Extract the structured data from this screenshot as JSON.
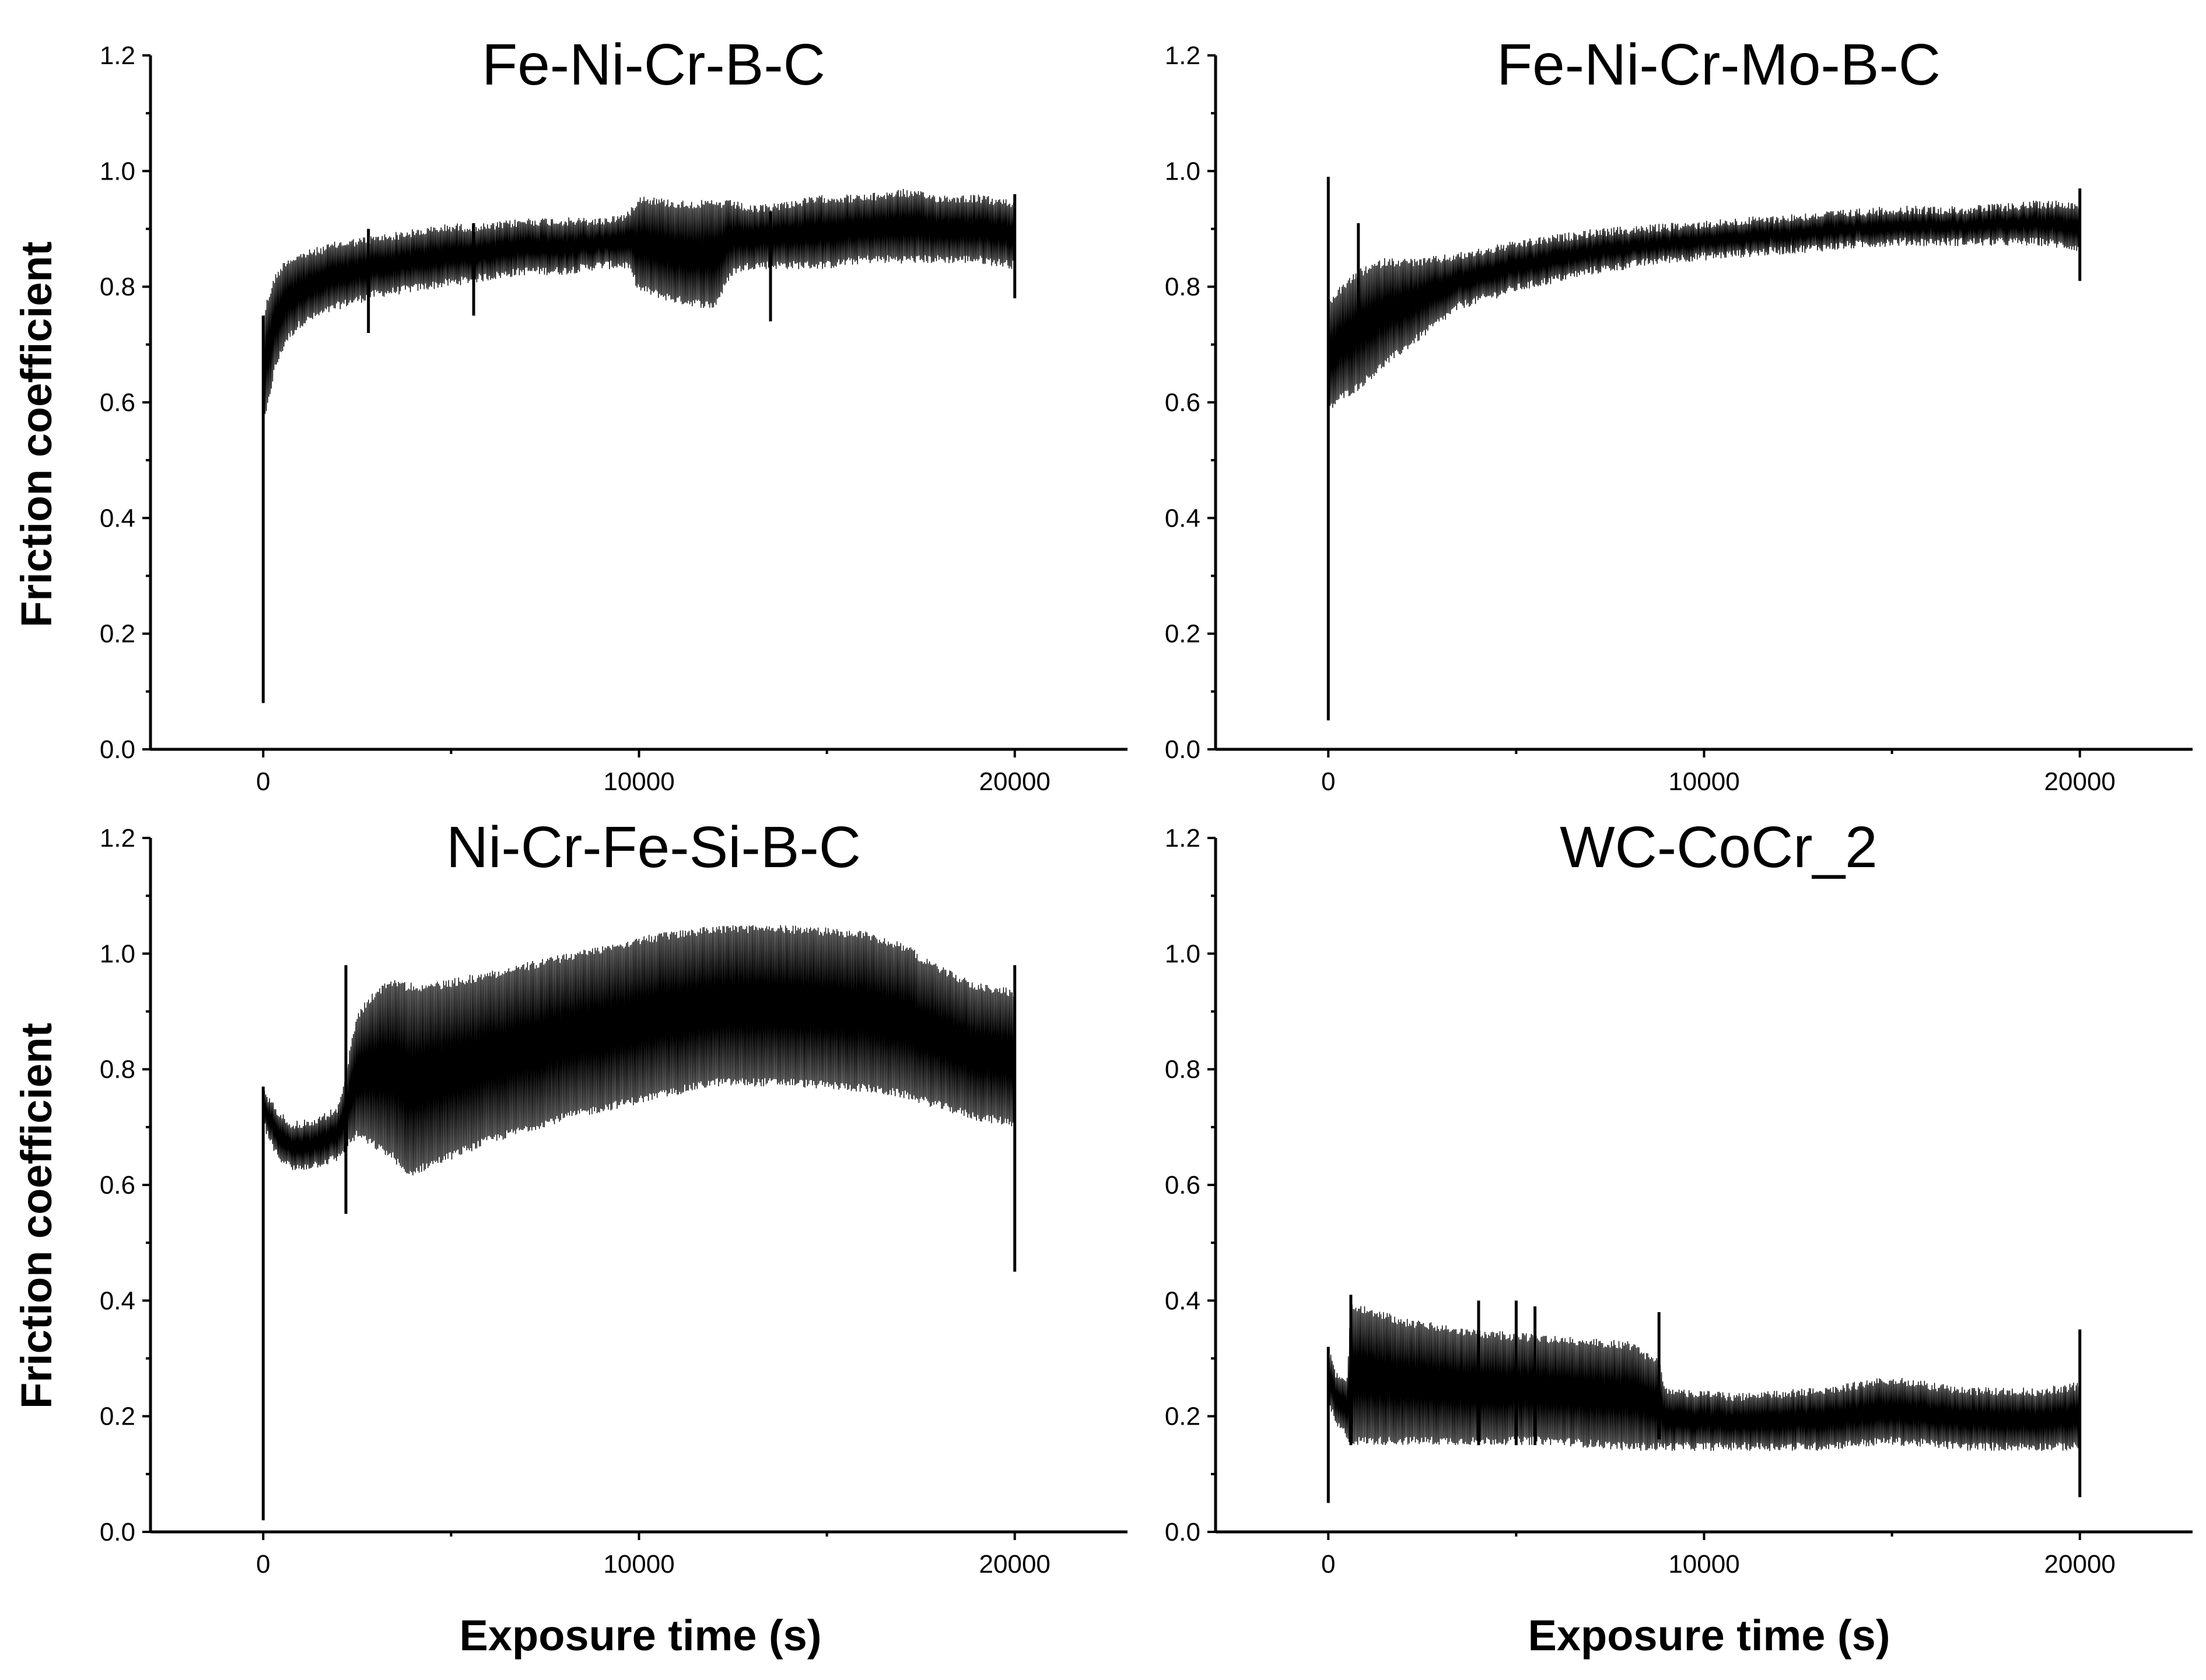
{
  "figure": {
    "ylabel": "Friction coefficient",
    "xlabel": "Exposure time (s)"
  },
  "chart_data": [
    {
      "type": "line",
      "title": "Fe-Ni-Cr-B-C",
      "xlabel": "Exposure time (s)",
      "ylabel": "Friction coefficient",
      "xlim": [
        -3000,
        23000
      ],
      "ylim": [
        0.0,
        1.2
      ],
      "xticks": [
        0,
        10000,
        20000
      ],
      "xtick_labels": [
        "0",
        "10000",
        "20000"
      ],
      "yticks": [
        0.0,
        0.2,
        0.4,
        0.6,
        0.8,
        1.0,
        1.2
      ],
      "ytick_labels": [
        "0.0",
        "0.2",
        "0.4",
        "0.6",
        "0.8",
        "1.0",
        "1.2"
      ],
      "series": [
        {
          "name": "Fe-Ni-Cr-B-C",
          "x": [
            0,
            100,
            300,
            600,
            1000,
            2000,
            3000,
            4000,
            5000,
            6000,
            7000,
            8000,
            9000,
            9700,
            10000,
            11000,
            12000,
            12500,
            13000,
            14000,
            15000,
            16000,
            17000,
            18000,
            19000,
            20000
          ],
          "upper": [
            0.75,
            0.78,
            0.82,
            0.85,
            0.86,
            0.88,
            0.89,
            0.9,
            0.91,
            0.91,
            0.92,
            0.92,
            0.92,
            0.93,
            0.96,
            0.95,
            0.95,
            0.95,
            0.94,
            0.95,
            0.96,
            0.96,
            0.97,
            0.96,
            0.96,
            0.95
          ],
          "lower": [
            0.55,
            0.58,
            0.65,
            0.7,
            0.73,
            0.76,
            0.78,
            0.79,
            0.8,
            0.81,
            0.82,
            0.82,
            0.83,
            0.83,
            0.79,
            0.77,
            0.76,
            0.82,
            0.83,
            0.83,
            0.83,
            0.84,
            0.84,
            0.84,
            0.84,
            0.83
          ],
          "spikes": [
            [
              0,
              0.08,
              0.75
            ],
            [
              2800,
              0.72,
              0.9
            ],
            [
              5600,
              0.75,
              0.91
            ],
            [
              13500,
              0.74,
              0.93
            ],
            [
              20000,
              0.78,
              0.96
            ]
          ]
        }
      ]
    },
    {
      "type": "line",
      "title": "Fe-Ni-Cr-Mo-B-C",
      "xlabel": "Exposure time (s)",
      "ylabel": "Friction coefficient",
      "xlim": [
        -3000,
        23000
      ],
      "ylim": [
        0.0,
        1.2
      ],
      "xticks": [
        0,
        10000,
        20000
      ],
      "xtick_labels": [
        "0",
        "10000",
        "20000"
      ],
      "yticks": [
        0.0,
        0.2,
        0.4,
        0.6,
        0.8,
        1.0,
        1.2
      ],
      "ytick_labels": [
        "0.0",
        "0.2",
        "0.4",
        "0.6",
        "0.8",
        "1.0",
        "1.2"
      ],
      "series": [
        {
          "name": "Fe-Ni-Cr-Mo-B-C",
          "x": [
            0,
            300,
            800,
            1500,
            2500,
            3500,
            5000,
            7000,
            9000,
            11000,
            13000,
            15000,
            17000,
            19000,
            20000
          ],
          "upper": [
            0.78,
            0.8,
            0.83,
            0.85,
            0.85,
            0.86,
            0.88,
            0.9,
            0.91,
            0.92,
            0.93,
            0.94,
            0.94,
            0.95,
            0.95
          ],
          "lower": [
            0.58,
            0.6,
            0.62,
            0.66,
            0.71,
            0.76,
            0.79,
            0.82,
            0.84,
            0.85,
            0.86,
            0.87,
            0.87,
            0.87,
            0.86
          ],
          "spikes": [
            [
              0,
              0.05,
              0.99
            ],
            [
              800,
              0.7,
              0.91
            ],
            [
              20000,
              0.81,
              0.97
            ]
          ]
        }
      ]
    },
    {
      "type": "line",
      "title": "Ni-Cr-Fe-Si-B-C",
      "xlabel": "Exposure time (s)",
      "ylabel": "Friction coefficient",
      "xlim": [
        -3000,
        23000
      ],
      "ylim": [
        0.0,
        1.2
      ],
      "xticks": [
        0,
        10000,
        20000
      ],
      "xtick_labels": [
        "0",
        "10000",
        "20000"
      ],
      "yticks": [
        0.0,
        0.2,
        0.4,
        0.6,
        0.8,
        1.0,
        1.2
      ],
      "ytick_labels": [
        "0.0",
        "0.2",
        "0.4",
        "0.6",
        "0.8",
        "1.0",
        "1.2"
      ],
      "series": [
        {
          "name": "Ni-Cr-Fe-Si-B-C",
          "x": [
            0,
            300,
            800,
            1500,
            2000,
            2200,
            2500,
            3000,
            3500,
            3800,
            4500,
            6000,
            8000,
            10000,
            12000,
            14000,
            16000,
            17000,
            18000,
            19000,
            20000
          ],
          "upper": [
            0.77,
            0.74,
            0.71,
            0.72,
            0.74,
            0.8,
            0.9,
            0.94,
            0.96,
            0.95,
            0.95,
            0.97,
            1.0,
            1.03,
            1.05,
            1.05,
            1.04,
            1.02,
            0.98,
            0.95,
            0.94
          ],
          "lower": [
            0.7,
            0.65,
            0.62,
            0.63,
            0.64,
            0.66,
            0.68,
            0.66,
            0.64,
            0.61,
            0.63,
            0.67,
            0.71,
            0.74,
            0.77,
            0.77,
            0.76,
            0.75,
            0.73,
            0.71,
            0.7
          ],
          "spikes": [
            [
              0,
              0.02,
              0.77
            ],
            [
              2200,
              0.55,
              0.98
            ],
            [
              20000,
              0.45,
              0.98
            ]
          ]
        }
      ]
    },
    {
      "type": "line",
      "title": "WC-CoCr_2",
      "xlabel": "Exposure time (s)",
      "ylabel": "Friction coefficient",
      "xlim": [
        -3000,
        23000
      ],
      "ylim": [
        0.0,
        1.2
      ],
      "xticks": [
        0,
        10000,
        20000
      ],
      "xtick_labels": [
        "0",
        "10000",
        "20000"
      ],
      "yticks": [
        0.0,
        0.2,
        0.4,
        0.6,
        0.8,
        1.0,
        1.2
      ],
      "ytick_labels": [
        "0.0",
        "0.2",
        "0.4",
        "0.6",
        "0.8",
        "1.0",
        "1.2"
      ],
      "series": [
        {
          "name": "WC-CoCr_2",
          "x": [
            0,
            200,
            500,
            600,
            2000,
            4000,
            6000,
            8000,
            8800,
            9000,
            11000,
            13000,
            15000,
            17000,
            19000,
            20000
          ],
          "upper": [
            0.32,
            0.28,
            0.27,
            0.4,
            0.37,
            0.35,
            0.34,
            0.33,
            0.3,
            0.25,
            0.24,
            0.25,
            0.27,
            0.25,
            0.25,
            0.26
          ],
          "lower": [
            0.22,
            0.18,
            0.16,
            0.15,
            0.15,
            0.15,
            0.15,
            0.14,
            0.14,
            0.14,
            0.14,
            0.14,
            0.15,
            0.14,
            0.14,
            0.14
          ],
          "spikes": [
            [
              0,
              0.05,
              0.32
            ],
            [
              600,
              0.15,
              0.41
            ],
            [
              4000,
              0.15,
              0.4
            ],
            [
              5000,
              0.15,
              0.4
            ],
            [
              5500,
              0.15,
              0.39
            ],
            [
              8800,
              0.16,
              0.38
            ],
            [
              20000,
              0.06,
              0.35
            ]
          ]
        }
      ]
    }
  ]
}
